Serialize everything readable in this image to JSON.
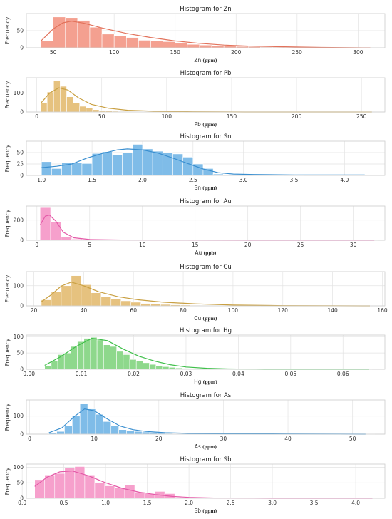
{
  "chart_data": [
    {
      "type": "bar",
      "title": "Histogram for Zn",
      "xlabel": "Zn",
      "xunit": "(ppm)",
      "ylabel": "Frequency",
      "color": "#f4a090",
      "line_color": "#e2725b",
      "xlim": [
        28,
        322
      ],
      "ylim": [
        0,
        100
      ],
      "xticks": [
        50,
        100,
        150,
        200,
        250,
        300
      ],
      "yticks": [
        0,
        50
      ],
      "x_start": 40,
      "bin_width": 10,
      "values": [
        20,
        90,
        88,
        80,
        60,
        40,
        35,
        30,
        22,
        20,
        18,
        14,
        10,
        8,
        6,
        5,
        4,
        3,
        2,
        2,
        1,
        1,
        1,
        1,
        0,
        0,
        1,
        0
      ],
      "kde": [
        [
          40,
          20
        ],
        [
          50,
          55
        ],
        [
          58,
          73
        ],
        [
          65,
          78
        ],
        [
          75,
          72
        ],
        [
          90,
          58
        ],
        [
          110,
          42
        ],
        [
          130,
          30
        ],
        [
          150,
          20
        ],
        [
          170,
          13
        ],
        [
          190,
          8
        ],
        [
          210,
          5
        ],
        [
          240,
          3
        ],
        [
          270,
          1
        ],
        [
          310,
          0
        ]
      ]
    },
    {
      "type": "bar",
      "title": "Histogram for Pb",
      "xlabel": "Pb",
      "xunit": "(ppm)",
      "ylabel": "Frequency",
      "color": "#e6c27f",
      "line_color": "#c9a042",
      "xlim": [
        -8,
        268
      ],
      "ylim": [
        0,
        180
      ],
      "xticks": [
        0,
        50,
        100,
        150,
        200,
        250
      ],
      "yticks": [
        0,
        100
      ],
      "x_start": 3,
      "bin_width": 5,
      "values": [
        50,
        105,
        165,
        135,
        80,
        48,
        30,
        20,
        12,
        8,
        6,
        4,
        3,
        2,
        2,
        1,
        1,
        1,
        1,
        0,
        0,
        1
      ],
      "kde": [
        [
          3,
          45
        ],
        [
          10,
          100
        ],
        [
          17,
          127
        ],
        [
          24,
          115
        ],
        [
          32,
          75
        ],
        [
          42,
          40
        ],
        [
          55,
          20
        ],
        [
          70,
          9
        ],
        [
          90,
          4
        ],
        [
          120,
          1
        ],
        [
          160,
          0
        ],
        [
          258,
          0
        ]
      ]
    },
    {
      "type": "bar",
      "title": "Histogram for Sn",
      "xlabel": "Sn",
      "xunit": "(ppm)",
      "ylabel": "Frequency",
      "color": "#7fbce8",
      "line_color": "#3a8fd0",
      "xlim": [
        0.85,
        4.4
      ],
      "ylim": [
        0,
        75
      ],
      "xticks": [
        1.0,
        1.5,
        2.0,
        2.5,
        3.0,
        3.5,
        4.0
      ],
      "yticks": [
        0,
        25,
        50
      ],
      "x_start": 1.0,
      "bin_width": 0.1,
      "values": [
        30,
        15,
        27,
        28,
        26,
        48,
        52,
        45,
        50,
        68,
        58,
        53,
        50,
        47,
        40,
        25,
        15,
        3,
        0,
        0,
        0,
        2,
        1,
        1,
        0,
        1,
        0,
        0,
        0,
        0,
        0,
        0,
        0
      ],
      "kde": [
        [
          1.0,
          17
        ],
        [
          1.15,
          20
        ],
        [
          1.3,
          25
        ],
        [
          1.45,
          38
        ],
        [
          1.6,
          48
        ],
        [
          1.75,
          56
        ],
        [
          1.85,
          58
        ],
        [
          2.0,
          56
        ],
        [
          2.15,
          49
        ],
        [
          2.3,
          38
        ],
        [
          2.45,
          26
        ],
        [
          2.6,
          14
        ],
        [
          2.75,
          6
        ],
        [
          2.9,
          3
        ],
        [
          3.1,
          2
        ],
        [
          3.5,
          1
        ],
        [
          4.2,
          1
        ]
      ]
    },
    {
      "type": "bar",
      "title": "Histogram for Au",
      "xlabel": "Au",
      "xunit": "(ppb)",
      "ylabel": "Frequency",
      "color": "#f6a0cc",
      "line_color": "#e45aa8",
      "xlim": [
        -1,
        33
      ],
      "ylim": [
        0,
        340
      ],
      "xticks": [
        0,
        5,
        10,
        15,
        20,
        25,
        30
      ],
      "yticks": [
        0,
        200
      ],
      "x_start": 0.3,
      "bin_width": 1.0,
      "values": [
        325,
        180,
        35,
        12,
        8,
        5,
        4,
        3,
        2,
        1,
        1,
        1,
        0,
        0,
        0,
        1,
        0,
        0,
        0,
        0,
        0,
        0,
        0,
        0,
        0,
        0,
        0,
        0,
        0,
        0,
        0,
        1
      ],
      "kde": [
        [
          0.3,
          150
        ],
        [
          0.8,
          240
        ],
        [
          1.2,
          250
        ],
        [
          1.8,
          190
        ],
        [
          2.5,
          80
        ],
        [
          3.5,
          25
        ],
        [
          5,
          8
        ],
        [
          8,
          3
        ],
        [
          12,
          1
        ],
        [
          20,
          0
        ],
        [
          32,
          0
        ]
      ]
    },
    {
      "type": "bar",
      "title": "Histogram for Cu",
      "xlabel": "Cu",
      "xunit": "(ppm)",
      "ylabel": "Frequency",
      "color": "#e6c27f",
      "line_color": "#c9a042",
      "xlim": [
        17,
        161
      ],
      "ylim": [
        0,
        170
      ],
      "xticks": [
        20,
        40,
        60,
        80,
        100,
        120,
        140,
        160
      ],
      "yticks": [
        0,
        100
      ],
      "x_start": 23,
      "bin_width": 4,
      "values": [
        30,
        70,
        100,
        150,
        105,
        65,
        45,
        35,
        25,
        18,
        12,
        9,
        7,
        5,
        4,
        3,
        2,
        2,
        1,
        1,
        1,
        1,
        0,
        0,
        0,
        0,
        0,
        0,
        0,
        0,
        0,
        0,
        1
      ],
      "kde": [
        [
          23,
          20
        ],
        [
          27,
          55
        ],
        [
          31,
          98
        ],
        [
          35,
          118
        ],
        [
          40,
          100
        ],
        [
          46,
          70
        ],
        [
          54,
          45
        ],
        [
          62,
          30
        ],
        [
          72,
          18
        ],
        [
          85,
          10
        ],
        [
          100,
          4
        ],
        [
          120,
          1
        ],
        [
          155,
          0
        ]
      ]
    },
    {
      "type": "bar",
      "title": "Histogram for Hg",
      "xlabel": "Hg",
      "xunit": "(ppm)",
      "ylabel": "Frequency",
      "color": "#8ed88c",
      "line_color": "#3fbf4a",
      "xlim": [
        -0.0005,
        0.068
      ],
      "ylim": [
        0,
        105
      ],
      "xticks": [
        0.0,
        0.01,
        0.02,
        0.03,
        0.04,
        0.05,
        0.06
      ],
      "yticks": [
        0,
        50,
        100
      ],
      "x_start": 0.003,
      "bin_width": 0.00125,
      "values": [
        10,
        25,
        45,
        50,
        70,
        85,
        95,
        98,
        90,
        75,
        70,
        55,
        45,
        30,
        25,
        20,
        15,
        10,
        8,
        6,
        4,
        3,
        2,
        1,
        1,
        0,
        0,
        0,
        0,
        0,
        0,
        0,
        0,
        0,
        0,
        0,
        0,
        0,
        0,
        0,
        0,
        0,
        0,
        0,
        0,
        0,
        0,
        0,
        0,
        1
      ],
      "kde": [
        [
          0.003,
          12
        ],
        [
          0.006,
          38
        ],
        [
          0.009,
          70
        ],
        [
          0.012,
          95
        ],
        [
          0.015,
          88
        ],
        [
          0.018,
          62
        ],
        [
          0.021,
          40
        ],
        [
          0.024,
          25
        ],
        [
          0.027,
          14
        ],
        [
          0.03,
          7
        ],
        [
          0.034,
          3
        ],
        [
          0.038,
          1
        ],
        [
          0.045,
          0
        ],
        [
          0.065,
          0
        ]
      ]
    },
    {
      "type": "bar",
      "title": "Histogram for As",
      "xlabel": "As",
      "xunit": "(ppm)",
      "ylabel": "Frequency",
      "color": "#7fbce8",
      "line_color": "#3a8fd0",
      "xlim": [
        -0.5,
        55
      ],
      "ylim": [
        0,
        190
      ],
      "xticks": [
        0,
        10,
        20,
        30,
        40,
        50
      ],
      "yticks": [
        0,
        100
      ],
      "x_start": 3,
      "bin_width": 1.2,
      "values": [
        8,
        15,
        45,
        100,
        170,
        140,
        110,
        70,
        45,
        25,
        20,
        15,
        12,
        10,
        5,
        4,
        3,
        2,
        2,
        1,
        1,
        1,
        1,
        1,
        0,
        0,
        0,
        0,
        0,
        0,
        0,
        0,
        0,
        0,
        0,
        0,
        0,
        0,
        0,
        0,
        0,
        1
      ],
      "kde": [
        [
          3,
          8
        ],
        [
          5,
          35
        ],
        [
          7,
          100
        ],
        [
          8.5,
          140
        ],
        [
          10,
          130
        ],
        [
          12,
          85
        ],
        [
          14,
          45
        ],
        [
          16,
          25
        ],
        [
          18,
          15
        ],
        [
          21,
          8
        ],
        [
          25,
          4
        ],
        [
          30,
          2
        ],
        [
          40,
          1
        ],
        [
          52,
          0
        ]
      ]
    },
    {
      "type": "bar",
      "title": "Histogram for Sb",
      "xlabel": "Sb",
      "xunit": "(ppm)",
      "ylabel": "Frequency",
      "color": "#f6a0cc",
      "line_color": "#e45aa8",
      "xlim": [
        0.05,
        4.35
      ],
      "ylim": [
        0,
        110
      ],
      "xticks": [
        0.0,
        0.5,
        1.0,
        1.5,
        2.0,
        2.5,
        3.0,
        3.5,
        4.0
      ],
      "yticks": [
        0,
        50,
        100
      ],
      "x_start": 0.15,
      "bin_width": 0.12,
      "values": [
        60,
        75,
        80,
        98,
        102,
        75,
        50,
        40,
        35,
        42,
        20,
        15,
        22,
        15,
        3,
        2,
        1,
        0,
        0,
        1,
        0,
        0,
        0,
        0,
        0,
        0,
        0,
        0,
        0,
        0,
        0,
        0,
        0,
        1
      ],
      "kde": [
        [
          0.15,
          38
        ],
        [
          0.3,
          68
        ],
        [
          0.45,
          85
        ],
        [
          0.6,
          88
        ],
        [
          0.8,
          72
        ],
        [
          1.0,
          50
        ],
        [
          1.2,
          32
        ],
        [
          1.4,
          20
        ],
        [
          1.6,
          12
        ],
        [
          1.8,
          6
        ],
        [
          2.0,
          3
        ],
        [
          2.3,
          1
        ],
        [
          3.0,
          0
        ],
        [
          4.2,
          0
        ]
      ]
    }
  ]
}
